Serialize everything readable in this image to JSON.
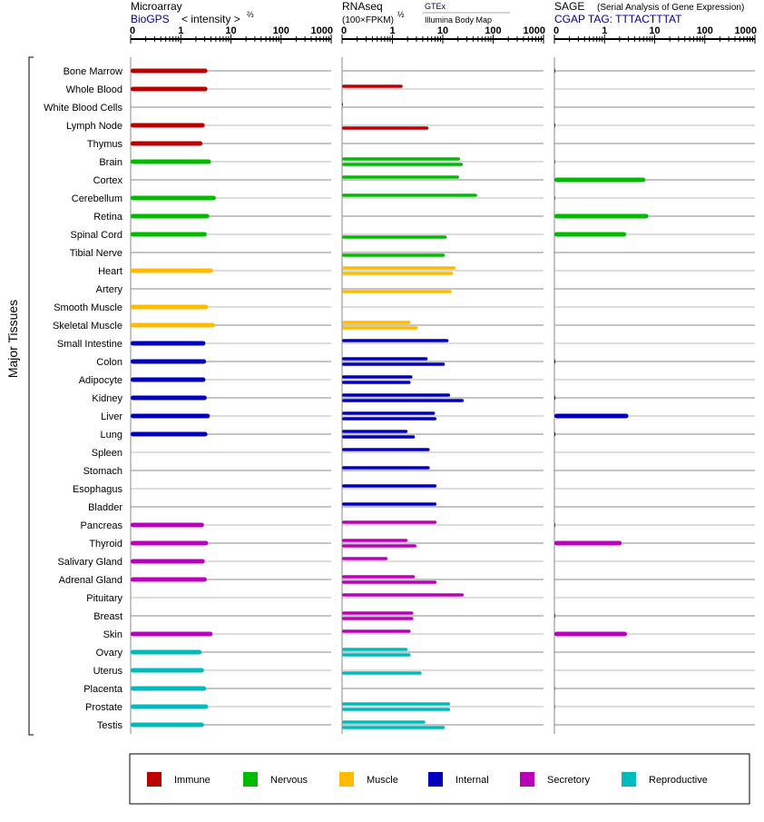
{
  "chart_data": {
    "type": "bar",
    "y_axis_label": "Major Tissues",
    "tissues": [
      "Bone Marrow",
      "Whole Blood",
      "White Blood Cells",
      "Lymph Node",
      "Thymus",
      "Brain",
      "Cortex",
      "Cerebellum",
      "Retina",
      "Spinal Cord",
      "Tibial Nerve",
      "Heart",
      "Artery",
      "Smooth Muscle",
      "Skeletal Muscle",
      "Small Intestine",
      "Colon",
      "Adipocyte",
      "Kidney",
      "Liver",
      "Lung",
      "Spleen",
      "Stomach",
      "Esophagus",
      "Bladder",
      "Pancreas",
      "Thyroid",
      "Salivary Gland",
      "Adrenal Gland",
      "Pituitary",
      "Breast",
      "Skin",
      "Ovary",
      "Uterus",
      "Placenta",
      "Prostate",
      "Testis"
    ],
    "tissue_groups": [
      "Immune",
      "Immune",
      "Immune",
      "Immune",
      "Immune",
      "Nervous",
      "Nervous",
      "Nervous",
      "Nervous",
      "Nervous",
      "Nervous",
      "Muscle",
      "Muscle",
      "Muscle",
      "Muscle",
      "Internal",
      "Internal",
      "Internal",
      "Internal",
      "Internal",
      "Internal",
      "Internal",
      "Internal",
      "Internal",
      "Internal",
      "Secretory",
      "Secretory",
      "Secretory",
      "Secretory",
      "Secretory",
      "Secretory",
      "Secretory",
      "Reproductive",
      "Reproductive",
      "Reproductive",
      "Reproductive",
      "Reproductive"
    ],
    "legend": [
      {
        "name": "Immune",
        "color": "#bb0000"
      },
      {
        "name": "Nervous",
        "color": "#00bb00"
      },
      {
        "name": "Muscle",
        "color": "#ffbb00"
      },
      {
        "name": "Internal",
        "color": "#0000bb"
      },
      {
        "name": "Secretory",
        "color": "#bb00bb"
      },
      {
        "name": "Reproductive",
        "color": "#00bbbb"
      }
    ],
    "x_ticks": [
      "0",
      "1",
      "10",
      "100",
      "1000"
    ],
    "panels": [
      {
        "key": "microarray",
        "title": "Microarray",
        "subtitle_link": "BioGPS",
        "subtitle_text": "< intensity >",
        "subtitle_exp": "⅔",
        "values": [
          3.4,
          3.4,
          null,
          3,
          2.7,
          4,
          null,
          5,
          3.7,
          3.3,
          null,
          4.4,
          null,
          3.5,
          4.8,
          3.1,
          3.2,
          3.1,
          3.3,
          3.8,
          3.4,
          null,
          null,
          null,
          null,
          2.9,
          3.5,
          3,
          3.3,
          null,
          null,
          4.3,
          2.6,
          2.9,
          3.2,
          3.5,
          2.9
        ]
      },
      {
        "key": "rnaseq",
        "title": "RNAseq",
        "subtitle_text": "(100×FPKM)",
        "subtitle_exp": "½",
        "source_link": "GTEx",
        "source_text": "Illumina Body Map",
        "values_top": [
          null,
          1.6,
          0.05,
          null,
          null,
          22,
          21,
          48,
          null,
          null,
          null,
          18,
          null,
          null,
          2.3,
          13,
          5,
          2.5,
          14,
          7,
          2,
          5.5,
          5.5,
          7.5,
          7.5,
          7.5,
          2,
          0.8,
          2.8,
          26,
          2.6,
          2.3,
          2,
          null,
          null,
          14,
          4.5
        ],
        "values_bottom": [
          null,
          null,
          null,
          5.2,
          null,
          25,
          null,
          null,
          null,
          12,
          11,
          16,
          15,
          null,
          3.2,
          null,
          11,
          2.3,
          26,
          7.5,
          2.8,
          null,
          null,
          null,
          null,
          null,
          3,
          null,
          7.5,
          null,
          2.6,
          null,
          2.3,
          3.8,
          null,
          14,
          11
        ]
      },
      {
        "key": "sage",
        "title": "SAGE",
        "subtitle_paren": "(Serial Analysis of Gene Expression)",
        "subtitle_link": "CGAP TAG: TTTACTTTAT",
        "values": [
          0.05,
          null,
          null,
          0.05,
          null,
          0.05,
          6.5,
          0.05,
          7.5,
          2.7,
          null,
          0.03,
          null,
          null,
          0.03,
          null,
          0.05,
          null,
          0.05,
          3,
          0.05,
          null,
          null,
          null,
          null,
          0.05,
          2.2,
          null,
          null,
          null,
          0.05,
          2.8,
          null,
          null,
          0.04,
          0.04,
          null
        ]
      }
    ]
  }
}
